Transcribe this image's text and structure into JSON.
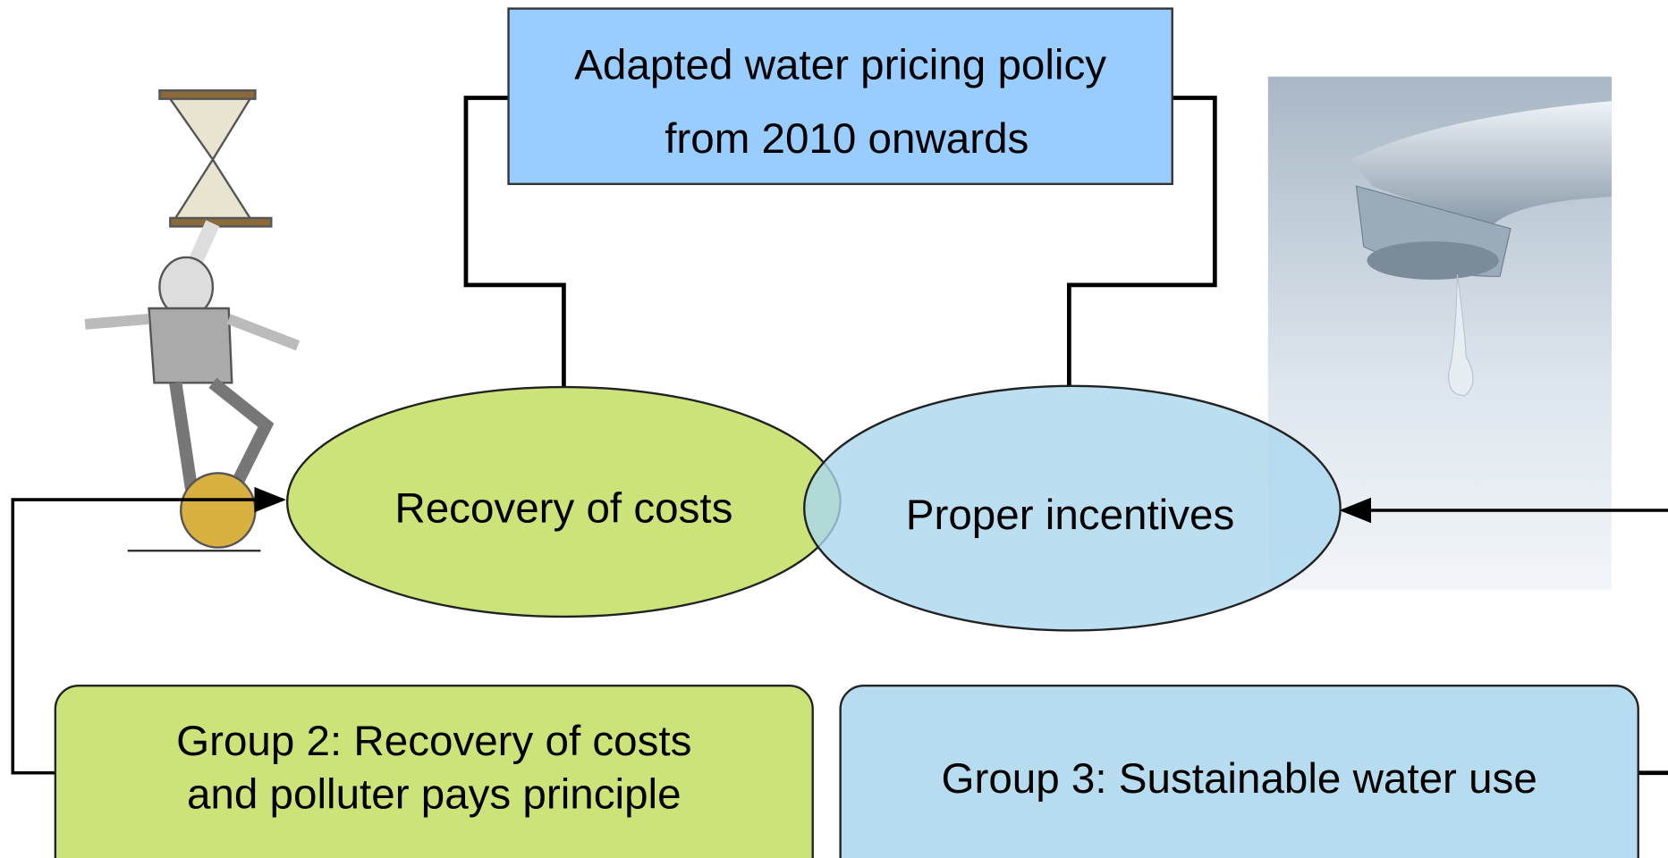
{
  "top_box": {
    "lines": [
      "Adapted water pricing policy",
      "from 2010 onwards"
    ]
  },
  "ellipses": [
    {
      "label": "Recovery of costs"
    },
    {
      "label": "Proper incentives"
    }
  ],
  "groups": [
    {
      "lines": [
        "Group 2: Recovery of costs",
        "and polluter pays principle"
      ]
    },
    {
      "lines": [
        "Group 3: Sustainable water use"
      ]
    }
  ]
}
